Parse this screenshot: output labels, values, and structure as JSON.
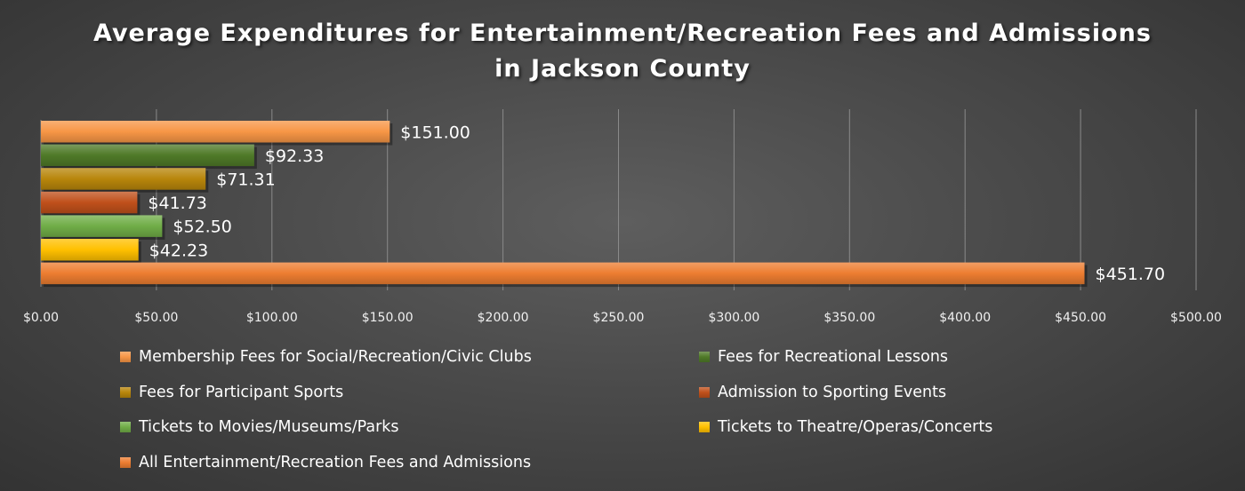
{
  "chart_data": {
    "type": "bar",
    "orientation": "horizontal",
    "title": "Average Expenditures for Entertainment/Recreation Fees and Admissions in Jackson County",
    "xlim": [
      0,
      500
    ],
    "x_ticks": [
      "$0.00",
      "$50.00",
      "$100.00",
      "$150.00",
      "$200.00",
      "$250.00",
      "$300.00",
      "$350.00",
      "$400.00",
      "$450.00",
      "$500.00"
    ],
    "x_tick_values": [
      0,
      50,
      100,
      150,
      200,
      250,
      300,
      350,
      400,
      450,
      500
    ],
    "grid": "vertical",
    "legend_position": "bottom",
    "series": [
      {
        "name": "Membership Fees for Social/Recreation/Civic Clubs",
        "value": 151.0,
        "label": "$151.00",
        "color": "#f79646"
      },
      {
        "name": "Fees for Recreational Lessons",
        "value": 92.33,
        "label": "$92.33",
        "color": "#4f7a28"
      },
      {
        "name": "Fees for Participant Sports",
        "value": 71.31,
        "label": "$71.31",
        "color": "#b8860b"
      },
      {
        "name": "Admission to Sporting Events",
        "value": 41.73,
        "label": "$41.73",
        "color": "#c0501b"
      },
      {
        "name": "Tickets to Movies/Museums/Parks",
        "value": 52.5,
        "label": "$52.50",
        "color": "#70ad47"
      },
      {
        "name": "Tickets to Theatre/Operas/Concerts",
        "value": 42.23,
        "label": "$42.23",
        "color": "#ffc000"
      },
      {
        "name": "All Entertainment/Recreation Fees and Admissions",
        "value": 451.7,
        "label": "$451.70",
        "color": "#ed7d31"
      }
    ]
  }
}
